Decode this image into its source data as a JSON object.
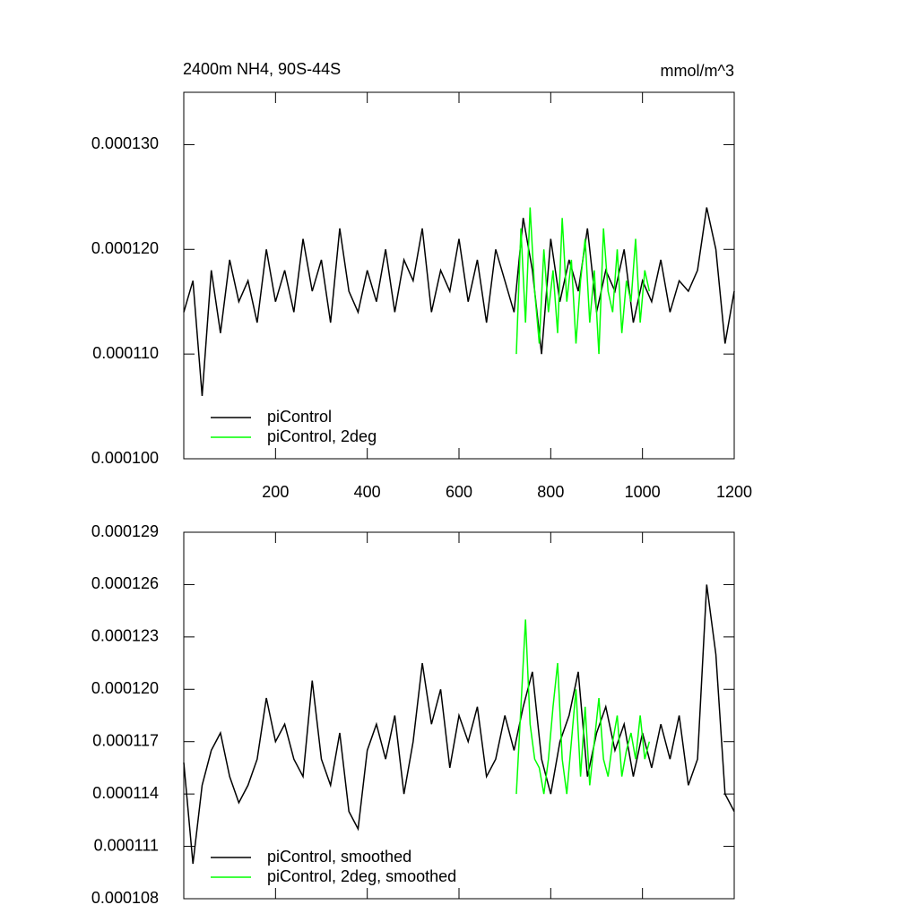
{
  "chart_data": [
    {
      "type": "line",
      "title": "2400m NH4, 90S-44S",
      "subtitle": "mmol/m^3",
      "legend": "lower left",
      "xlim": [
        0,
        1200
      ],
      "xticks": [
        200,
        400,
        600,
        800,
        1000,
        1200
      ],
      "ylim": [
        0.0001,
        0.000135
      ],
      "yticks": [
        {
          "value": 0.0001,
          "label": "0.000100"
        },
        {
          "value": 0.00011,
          "label": "0.000110"
        },
        {
          "value": 0.00012,
          "label": "0.000120"
        },
        {
          "value": 0.00013,
          "label": "0.000130"
        }
      ],
      "series": [
        {
          "name": "piControl",
          "color": "#000000",
          "x": [
            0,
            20,
            40,
            60,
            80,
            100,
            120,
            140,
            160,
            180,
            200,
            220,
            240,
            260,
            280,
            300,
            320,
            340,
            360,
            380,
            400,
            420,
            440,
            460,
            480,
            500,
            520,
            540,
            560,
            580,
            600,
            620,
            640,
            660,
            680,
            700,
            720,
            740,
            760,
            780,
            800,
            820,
            840,
            860,
            880,
            900,
            920,
            940,
            960,
            980,
            1000,
            1020,
            1040,
            1060,
            1080,
            1100,
            1120,
            1140,
            1160,
            1180,
            1200
          ],
          "values": [
            0.000114,
            0.000117,
            0.000106,
            0.000118,
            0.000112,
            0.000119,
            0.000115,
            0.000117,
            0.000113,
            0.00012,
            0.000115,
            0.000118,
            0.000114,
            0.000121,
            0.000116,
            0.000119,
            0.000113,
            0.000122,
            0.000116,
            0.000114,
            0.000118,
            0.000115,
            0.00012,
            0.000114,
            0.000119,
            0.000117,
            0.000122,
            0.000114,
            0.000118,
            0.000116,
            0.000121,
            0.000115,
            0.000119,
            0.000113,
            0.00012,
            0.000117,
            0.000114,
            0.000123,
            0.000118,
            0.00011,
            0.000121,
            0.000115,
            0.000119,
            0.000116,
            0.000122,
            0.000114,
            0.000118,
            0.000116,
            0.00012,
            0.000113,
            0.000117,
            0.000115,
            0.000119,
            0.000114,
            0.000117,
            0.000116,
            0.000118,
            0.000124,
            0.00012,
            0.000111,
            0.000116
          ]
        },
        {
          "name": "piControl, 2deg",
          "color": "#00ff00",
          "x": [
            725,
            735,
            745,
            755,
            765,
            775,
            785,
            795,
            805,
            815,
            825,
            835,
            845,
            855,
            865,
            875,
            885,
            895,
            905,
            915,
            925,
            935,
            945,
            955,
            965,
            975,
            985,
            995,
            1005,
            1015
          ],
          "values": [
            0.00011,
            0.000122,
            0.000113,
            0.000124,
            0.000116,
            0.000111,
            0.00012,
            0.000114,
            0.000118,
            0.000112,
            0.000123,
            0.000115,
            0.000119,
            0.000111,
            0.000117,
            0.000121,
            0.000113,
            0.000118,
            0.00011,
            0.000122,
            0.000116,
            0.000114,
            0.00012,
            0.000112,
            0.000117,
            0.000115,
            0.000121,
            0.000113,
            0.000118,
            0.000116
          ]
        }
      ]
    },
    {
      "type": "line",
      "legend": "lower left",
      "xlim": [
        0,
        1200
      ],
      "xticks": [
        200,
        400,
        600,
        800,
        1000,
        1200
      ],
      "ylim": [
        0.000108,
        0.000129
      ],
      "yticks": [
        0.000108,
        0.000111,
        0.000114,
        0.000117,
        {
          "value": 0.00012,
          "label": "0.000120"
        },
        0.000123,
        0.000126,
        0.000129
      ],
      "series": [
        {
          "name": "piControl, smoothed",
          "color": "#000000",
          "x": [
            0,
            20,
            40,
            60,
            80,
            100,
            120,
            140,
            160,
            180,
            200,
            220,
            240,
            260,
            280,
            300,
            320,
            340,
            360,
            380,
            400,
            420,
            440,
            460,
            480,
            500,
            520,
            540,
            560,
            580,
            600,
            620,
            640,
            660,
            680,
            700,
            720,
            740,
            760,
            780,
            800,
            820,
            840,
            860,
            880,
            900,
            920,
            940,
            960,
            980,
            1000,
            1020,
            1040,
            1060,
            1080,
            1100,
            1120,
            1140,
            1160,
            1180,
            1200
          ],
          "values": [
            0.0001158,
            0.00011,
            0.0001145,
            0.0001165,
            0.0001175,
            0.000115,
            0.0001135,
            0.0001145,
            0.000116,
            0.0001195,
            0.000117,
            0.000118,
            0.000116,
            0.000115,
            0.0001205,
            0.000116,
            0.0001145,
            0.0001175,
            0.000113,
            0.000112,
            0.0001165,
            0.000118,
            0.000116,
            0.0001185,
            0.000114,
            0.000117,
            0.0001215,
            0.000118,
            0.00012,
            0.0001155,
            0.0001185,
            0.000117,
            0.000119,
            0.000115,
            0.000116,
            0.0001185,
            0.0001165,
            0.000119,
            0.000121,
            0.000116,
            0.000114,
            0.000117,
            0.0001185,
            0.000121,
            0.000115,
            0.0001175,
            0.000119,
            0.0001165,
            0.000118,
            0.000115,
            0.0001175,
            0.0001155,
            0.000118,
            0.000116,
            0.0001185,
            0.0001145,
            0.000116,
            0.000126,
            0.000122,
            0.000114,
            0.000113
          ]
        },
        {
          "name": "piControl, 2deg, smoothed",
          "color": "#00ff00",
          "x": [
            725,
            735,
            745,
            755,
            765,
            775,
            785,
            795,
            805,
            815,
            825,
            835,
            845,
            855,
            865,
            875,
            885,
            895,
            905,
            915,
            925,
            935,
            945,
            955,
            965,
            975,
            985,
            995,
            1005,
            1015
          ],
          "values": [
            0.000114,
            0.000119,
            0.000124,
            0.000118,
            0.000116,
            0.0001155,
            0.000114,
            0.000116,
            0.000119,
            0.0001215,
            0.000116,
            0.000114,
            0.000117,
            0.00012,
            0.000115,
            0.000119,
            0.0001145,
            0.000117,
            0.0001195,
            0.000116,
            0.000115,
            0.000117,
            0.0001185,
            0.000115,
            0.0001165,
            0.0001175,
            0.000116,
            0.0001185,
            0.000116,
            0.000117
          ]
        }
      ]
    }
  ]
}
